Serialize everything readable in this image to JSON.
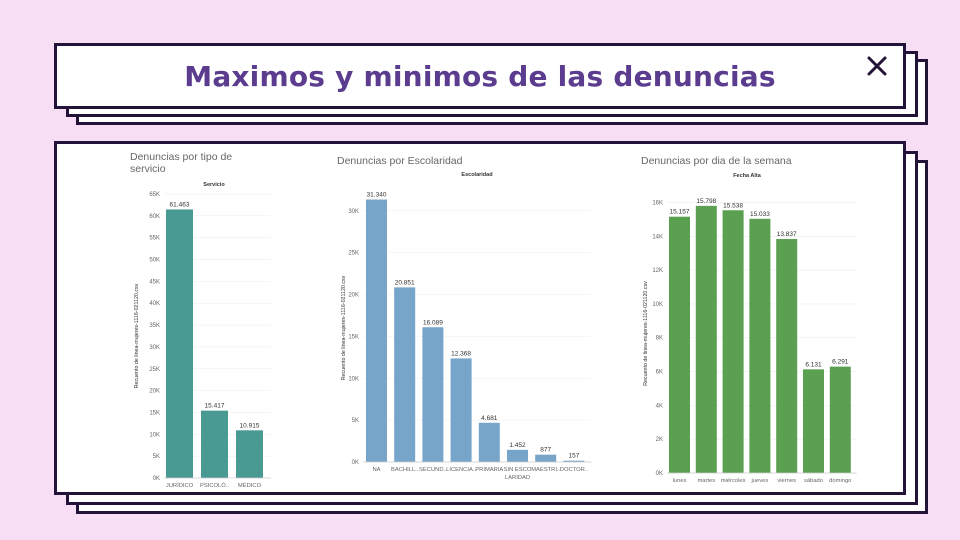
{
  "title": "Maximos y minimos de las denuncias",
  "icons": {
    "close": "close-icon"
  },
  "colors": {
    "background": "#f8def4",
    "border": "#231338",
    "title": "#5b3c8f"
  },
  "chart_data": [
    {
      "type": "bar",
      "title": "Denuncias por tipo de servicio",
      "header": "Servicio",
      "ylabel": "Recuento de linea-mujeres-1116-021120.csv",
      "ylim": [
        0,
        65000
      ],
      "yticks": [
        "0K",
        "5K",
        "10K",
        "15K",
        "20K",
        "25K",
        "30K",
        "35K",
        "40K",
        "45K",
        "50K",
        "55K",
        "60K",
        "65K"
      ],
      "categories": [
        "JURÍDICO",
        "PSICOLÓ..",
        "MÉDICO"
      ],
      "values": [
        61463,
        15417,
        10915
      ],
      "labels": [
        "61.463",
        "15.417",
        "10.915"
      ],
      "color": "#4a9a94"
    },
    {
      "type": "bar",
      "title": "Denuncias por Escolaridad",
      "header": "Escolaridad",
      "ylabel": "Recuento de linea-mujeres-1116-021120.csv",
      "ylim": [
        0,
        32000
      ],
      "yticks": [
        "0K",
        "5K",
        "10K",
        "15K",
        "20K",
        "25K",
        "30K"
      ],
      "categories": [
        "NA",
        "BACHILL..",
        "SECUND..",
        "LICENCIA..",
        "PRIMARIA",
        "SIN ESCO LARIDAD",
        "MAESTRI..",
        "DOCTOR.."
      ],
      "values": [
        31340,
        20851,
        16089,
        12368,
        4681,
        1452,
        877,
        157
      ],
      "labels": [
        "31.340",
        "20.851",
        "16.089",
        "12.368",
        "4.681",
        "1.452",
        "877",
        "157"
      ],
      "color": "#77a4c9"
    },
    {
      "type": "bar",
      "title": "Denuncias por dia de la semana",
      "header": "Fecha Alta",
      "ylabel": "Recuento de linea-mujeres-1116-021120.csv",
      "ylim": [
        0,
        16500
      ],
      "yticks": [
        "0K",
        "2K",
        "4K",
        "6K",
        "8K",
        "10K",
        "12K",
        "14K",
        "16K"
      ],
      "categories": [
        "lunes",
        "martes",
        "miércoles",
        "jueves",
        "viernes",
        "sábado",
        "domingo"
      ],
      "values": [
        15157,
        15798,
        15538,
        15033,
        13837,
        6131,
        6291
      ],
      "labels": [
        "15.157",
        "15.798",
        "15.538",
        "15.033",
        "13.837",
        "6.131",
        "6.291"
      ],
      "color": "#5aa050"
    }
  ]
}
